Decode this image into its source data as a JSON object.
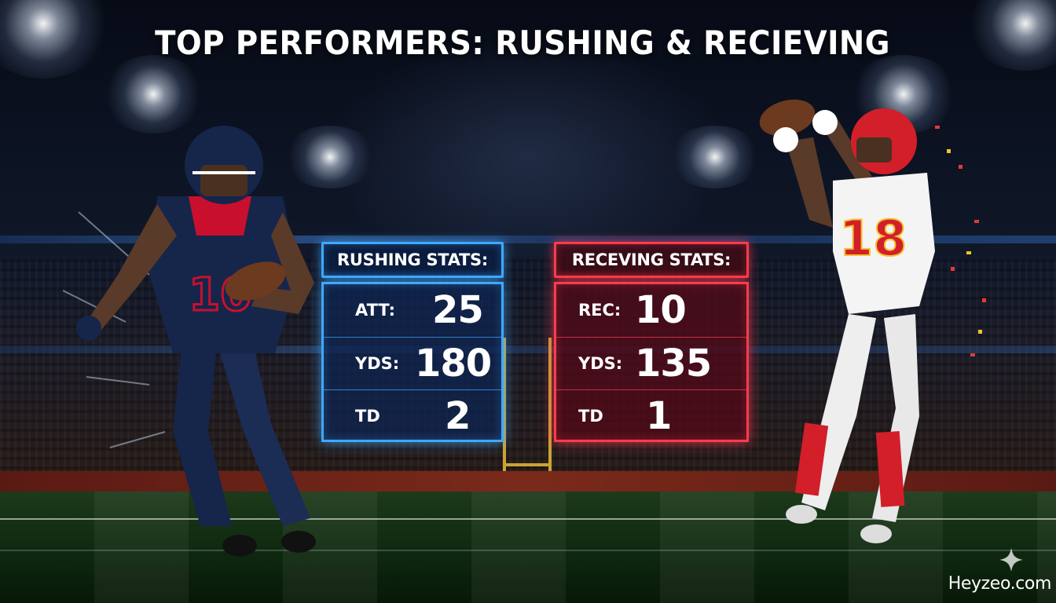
{
  "title": "TOP PERFORMERS: RUSHING & RECIEVING",
  "rushing": {
    "header": "RUSHING STATS:",
    "rows": [
      {
        "label": "ATT:",
        "value": "25"
      },
      {
        "label": "YDS:",
        "value": "180"
      },
      {
        "label": "TD",
        "value": "2"
      }
    ]
  },
  "receiving": {
    "header": "RECEVING STATS:",
    "rows": [
      {
        "label": "REC:",
        "value": "10"
      },
      {
        "label": "YDS:",
        "value": "135"
      },
      {
        "label": "TD",
        "value": "1"
      }
    ]
  },
  "players": {
    "left_jersey_number": "10",
    "right_jersey_number": "18"
  },
  "watermark": "Heyzeo.com",
  "colors": {
    "rushing_accent": "#3fa9ff",
    "receiving_accent": "#ff3b4e",
    "texans_navy": "#16254a",
    "texans_red": "#c8102e",
    "chiefs_red": "#d21f2a"
  }
}
